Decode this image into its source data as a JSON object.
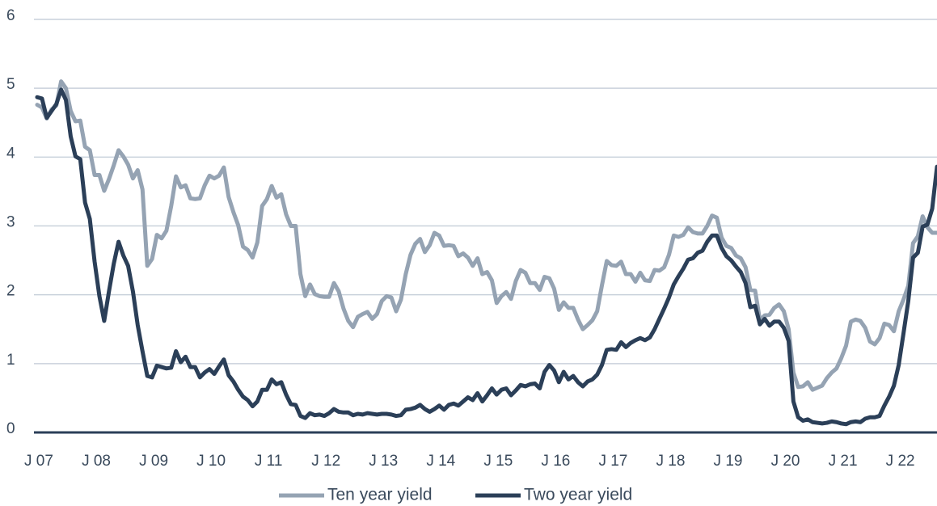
{
  "chart_data": {
    "type": "line",
    "categories": [
      "J 07",
      null,
      null,
      null,
      null,
      null,
      null,
      null,
      null,
      null,
      null,
      null,
      "J 08",
      null,
      null,
      null,
      null,
      null,
      null,
      null,
      null,
      null,
      null,
      null,
      "J 09",
      null,
      null,
      null,
      null,
      null,
      null,
      null,
      null,
      null,
      null,
      null,
      "J 10",
      null,
      null,
      null,
      null,
      null,
      null,
      null,
      null,
      null,
      null,
      null,
      "J 11",
      null,
      null,
      null,
      null,
      null,
      null,
      null,
      null,
      null,
      null,
      null,
      "J 12",
      null,
      null,
      null,
      null,
      null,
      null,
      null,
      null,
      null,
      null,
      null,
      "J 13",
      null,
      null,
      null,
      null,
      null,
      null,
      null,
      null,
      null,
      null,
      null,
      "J 14",
      null,
      null,
      null,
      null,
      null,
      null,
      null,
      null,
      null,
      null,
      null,
      "J 15",
      null,
      null,
      null,
      null,
      null,
      null,
      null,
      null,
      null,
      null,
      null,
      "J 16",
      null,
      null,
      null,
      null,
      null,
      null,
      null,
      null,
      null,
      null,
      null,
      "J 17",
      null,
      null,
      null,
      null,
      null,
      null,
      null,
      null,
      null,
      null,
      null,
      "J 18",
      null,
      null,
      null,
      null,
      null,
      null,
      null,
      null,
      null,
      null,
      null,
      "J 19",
      null,
      null,
      null,
      null,
      null,
      null,
      null,
      null,
      null,
      null,
      null,
      "J 20",
      null,
      null,
      null,
      null,
      null,
      null,
      null,
      null,
      null,
      null,
      null,
      "J 21",
      null,
      null,
      null,
      null,
      null,
      null,
      null,
      null,
      null,
      null,
      null,
      "J 22",
      null,
      null,
      null,
      null,
      null,
      null,
      null,
      null
    ],
    "series": [
      {
        "name": "Ten year yield",
        "color": "#95a3b3",
        "values": [
          4.76,
          4.72,
          4.56,
          4.69,
          4.75,
          5.1,
          5.0,
          4.67,
          4.52,
          4.53,
          4.15,
          4.1,
          3.74,
          3.74,
          3.51,
          3.68,
          3.88,
          4.1,
          4.01,
          3.89,
          3.69,
          3.81,
          3.53,
          2.42,
          2.52,
          2.87,
          2.82,
          2.93,
          3.29,
          3.72,
          3.56,
          3.59,
          3.4,
          3.39,
          3.4,
          3.59,
          3.73,
          3.69,
          3.73,
          3.85,
          3.42,
          3.2,
          3.01,
          2.7,
          2.65,
          2.54,
          2.76,
          3.29,
          3.39,
          3.58,
          3.41,
          3.46,
          3.17,
          3.0,
          3.0,
          2.3,
          1.98,
          2.15,
          2.01,
          1.98,
          1.97,
          1.97,
          2.17,
          2.05,
          1.8,
          1.62,
          1.53,
          1.68,
          1.72,
          1.75,
          1.65,
          1.72,
          1.91,
          1.98,
          1.96,
          1.76,
          1.93,
          2.3,
          2.58,
          2.74,
          2.81,
          2.62,
          2.72,
          2.9,
          2.86,
          2.71,
          2.72,
          2.71,
          2.56,
          2.6,
          2.54,
          2.42,
          2.53,
          2.3,
          2.33,
          2.21,
          1.88,
          1.98,
          2.04,
          1.94,
          2.2,
          2.36,
          2.32,
          2.17,
          2.17,
          2.07,
          2.26,
          2.24,
          2.09,
          1.78,
          1.89,
          1.81,
          1.81,
          1.64,
          1.5,
          1.56,
          1.63,
          1.76,
          2.14,
          2.49,
          2.43,
          2.42,
          2.48,
          2.3,
          2.3,
          2.19,
          2.32,
          2.21,
          2.2,
          2.36,
          2.35,
          2.4,
          2.58,
          2.86,
          2.84,
          2.87,
          2.98,
          2.91,
          2.89,
          2.89,
          3.0,
          3.15,
          3.12,
          2.83,
          2.71,
          2.68,
          2.57,
          2.53,
          2.4,
          2.07,
          2.06,
          1.63,
          1.7,
          1.71,
          1.81,
          1.86,
          1.76,
          1.5,
          0.87,
          0.66,
          0.67,
          0.73,
          0.62,
          0.65,
          0.68,
          0.79,
          0.87,
          0.93,
          1.08,
          1.26,
          1.61,
          1.64,
          1.62,
          1.52,
          1.32,
          1.28,
          1.37,
          1.58,
          1.56,
          1.47,
          1.76,
          1.93,
          2.13,
          2.75,
          2.85,
          3.14,
          2.98,
          2.9,
          2.9
        ]
      },
      {
        "name": "Two year yield",
        "color": "#2b3f58",
        "values": [
          4.87,
          4.85,
          4.57,
          4.67,
          4.77,
          4.98,
          4.83,
          4.3,
          4.01,
          3.97,
          3.34,
          3.1,
          2.48,
          1.98,
          1.62,
          2.05,
          2.45,
          2.77,
          2.57,
          2.42,
          2.05,
          1.56,
          1.18,
          0.82,
          0.8,
          0.97,
          0.95,
          0.93,
          0.94,
          1.18,
          1.02,
          1.1,
          0.95,
          0.95,
          0.8,
          0.87,
          0.92,
          0.85,
          0.96,
          1.06,
          0.83,
          0.74,
          0.62,
          0.52,
          0.47,
          0.38,
          0.45,
          0.62,
          0.62,
          0.77,
          0.7,
          0.73,
          0.55,
          0.41,
          0.4,
          0.24,
          0.21,
          0.28,
          0.25,
          0.26,
          0.24,
          0.28,
          0.34,
          0.3,
          0.29,
          0.29,
          0.25,
          0.27,
          0.26,
          0.28,
          0.27,
          0.26,
          0.27,
          0.27,
          0.26,
          0.24,
          0.25,
          0.33,
          0.34,
          0.36,
          0.4,
          0.34,
          0.3,
          0.34,
          0.39,
          0.33,
          0.4,
          0.42,
          0.39,
          0.45,
          0.51,
          0.47,
          0.57,
          0.45,
          0.54,
          0.64,
          0.55,
          0.62,
          0.64,
          0.54,
          0.61,
          0.69,
          0.67,
          0.7,
          0.71,
          0.64,
          0.88,
          0.98,
          0.9,
          0.73,
          0.88,
          0.77,
          0.82,
          0.73,
          0.67,
          0.74,
          0.77,
          0.84,
          0.98,
          1.2,
          1.21,
          1.2,
          1.31,
          1.24,
          1.3,
          1.34,
          1.37,
          1.34,
          1.38,
          1.5,
          1.65,
          1.8,
          1.96,
          2.15,
          2.27,
          2.38,
          2.51,
          2.53,
          2.61,
          2.64,
          2.77,
          2.86,
          2.86,
          2.68,
          2.56,
          2.5,
          2.41,
          2.33,
          2.17,
          1.82,
          1.84,
          1.57,
          1.65,
          1.55,
          1.61,
          1.61,
          1.52,
          1.33,
          0.45,
          0.22,
          0.17,
          0.19,
          0.15,
          0.14,
          0.13,
          0.14,
          0.16,
          0.15,
          0.13,
          0.12,
          0.15,
          0.16,
          0.15,
          0.2,
          0.22,
          0.22,
          0.24,
          0.39,
          0.52,
          0.68,
          0.98,
          1.44,
          1.91,
          2.54,
          2.61,
          2.99,
          3.02,
          3.25,
          3.86
        ]
      }
    ],
    "ylim": [
      0,
      6
    ],
    "yticks": [
      0,
      1,
      2,
      3,
      4,
      5,
      6
    ],
    "grid": true,
    "legend": "bottom"
  }
}
